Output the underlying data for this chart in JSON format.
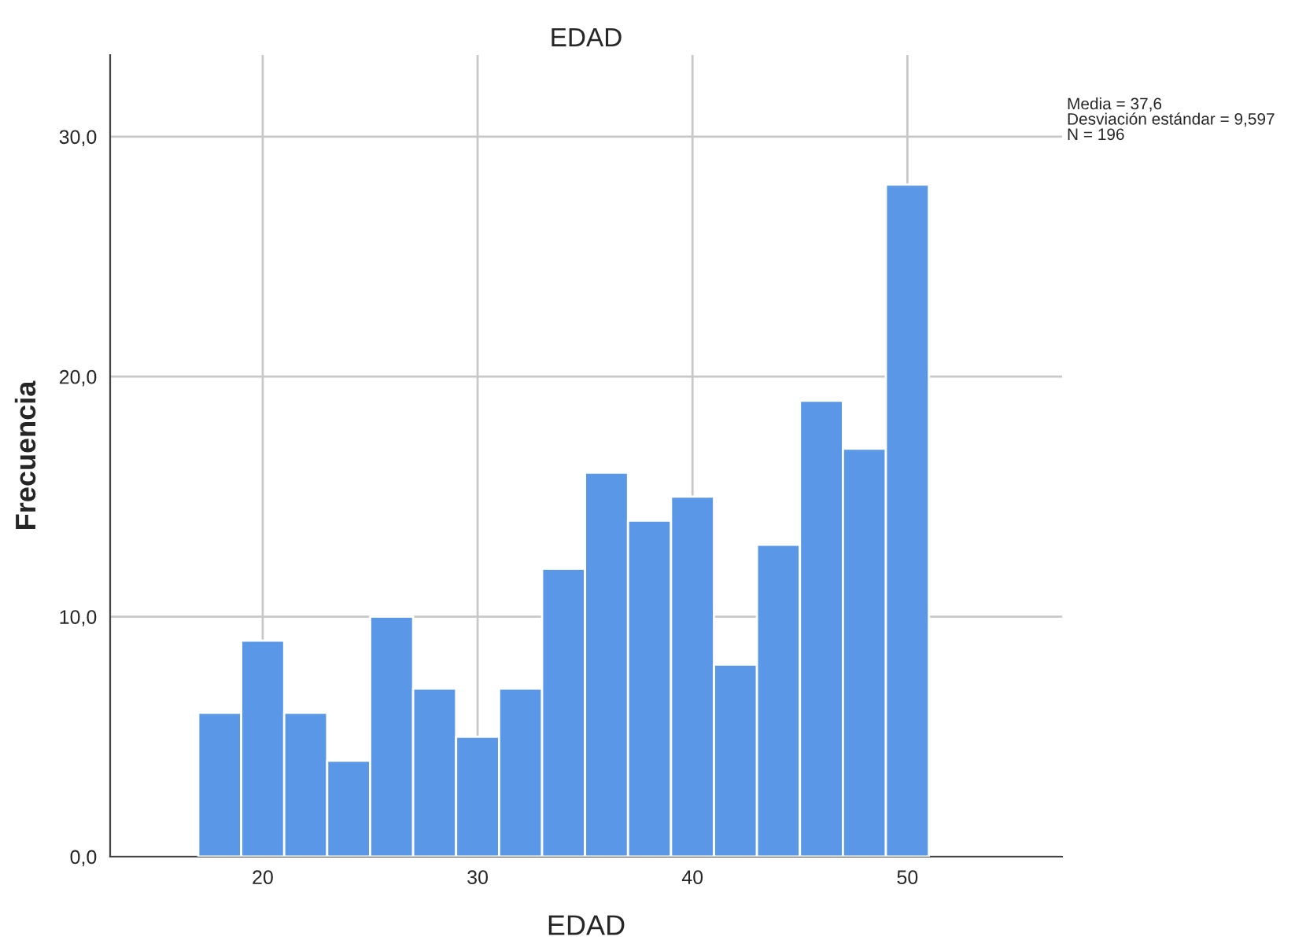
{
  "chart_data": {
    "type": "histogram",
    "title": "EDAD",
    "xlabel": "EDAD",
    "ylabel": "Frecuencia",
    "bins": [
      17,
      19,
      21,
      23,
      25,
      27,
      29,
      31,
      33,
      35,
      37,
      39,
      41,
      43,
      45,
      47,
      49,
      51
    ],
    "values": [
      6,
      9,
      6,
      4,
      10,
      7,
      5,
      7,
      12,
      16,
      14,
      15,
      8,
      13,
      19,
      17,
      28
    ],
    "color": "#5a97e6",
    "xlim": [
      12.9,
      57.2
    ],
    "xticks": [
      20,
      30,
      40,
      50
    ],
    "ylim": [
      0,
      33.4
    ],
    "yticks": [
      {
        "value": 0,
        "label": "0,0"
      },
      {
        "value": 10,
        "label": "10,0"
      },
      {
        "value": 20,
        "label": "20,0"
      },
      {
        "value": 30,
        "label": "30,0"
      }
    ],
    "grid": true,
    "annotations": [
      "Media = 37,6\nDesviación estándar = 9,597\nN = 196"
    ]
  }
}
